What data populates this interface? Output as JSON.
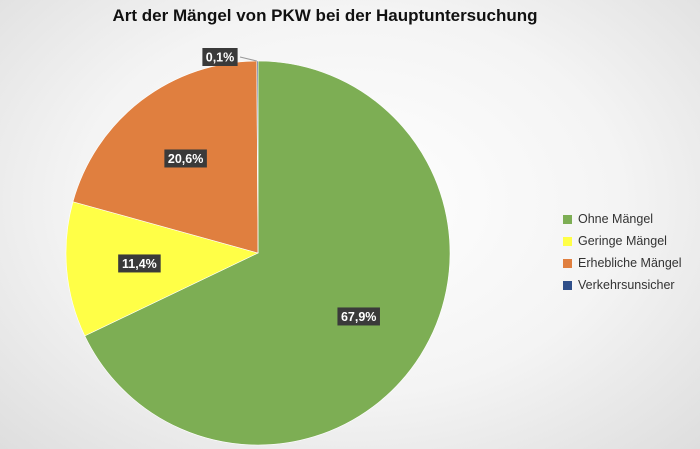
{
  "chart_data": {
    "type": "pie",
    "title": "Art der Mängel von PKW bei der Hauptuntersuchung",
    "categories": [
      "Ohne Mängel",
      "Geringe Mängel",
      "Erhebliche Mängel",
      "Verkehrsunsicher"
    ],
    "values": [
      67.9,
      11.4,
      20.6,
      0.1
    ],
    "data_labels": [
      "67,9%",
      "11,4%",
      "20,6%",
      "0,1%"
    ],
    "colors": [
      "#7dae54",
      "#ffff47",
      "#e07f3f",
      "#2f4f8a"
    ],
    "legend_position": "right",
    "start_angle": "top, clockwise"
  }
}
